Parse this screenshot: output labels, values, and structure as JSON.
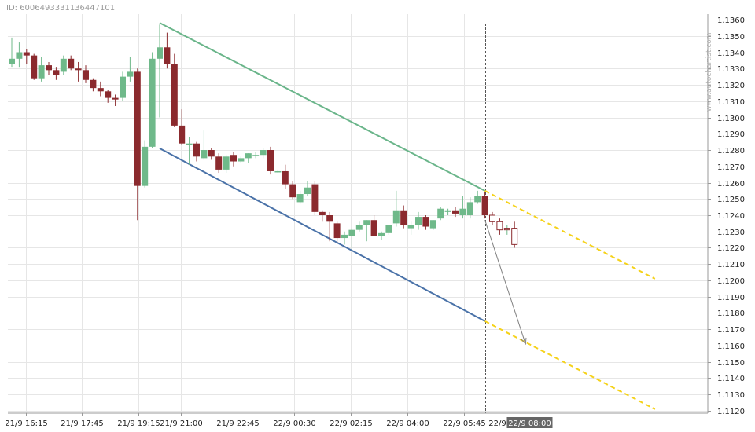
{
  "header": {
    "id_label": "ID: 6006493331136447101"
  },
  "watermark": "www.autochartist.com",
  "chart_data": {
    "type": "candlestick",
    "x_ticks": [
      "21/9 16:15",
      "21/9 17:45",
      "21/9 19:15",
      "21/9 21:00",
      "21/9 22:45",
      "22/9 00:30",
      "22/9 02:15",
      "22/9 04:00",
      "22/9 05:45",
      "22/9 07:30",
      "22/9 08:00"
    ],
    "highlighted_x_tick": "22/9 08:00",
    "y_ticks": [
      "1.1120",
      "1.1130",
      "1.1140",
      "1.1150",
      "1.1160",
      "1.1170",
      "1.1180",
      "1.1190",
      "1.1200",
      "1.1210",
      "1.1220",
      "1.1230",
      "1.1240",
      "1.1250",
      "1.1260",
      "1.1270",
      "1.1280",
      "1.1290",
      "1.1300",
      "1.1310",
      "1.1320",
      "1.1330",
      "1.1340",
      "1.1350",
      "1.1360"
    ],
    "ylim": [
      1.11175,
      1.13615
    ],
    "grid": true,
    "colors": {
      "up": "#6fb98a",
      "down": "#8b2a2e",
      "support": "#4a72a8",
      "resistance": "#6ab58a",
      "projection": "#f5d21a",
      "arrow": "#808080",
      "highlight_bg": "#666666"
    },
    "candles": [
      {
        "o": 1.1333,
        "h": 1.1349,
        "l": 1.1331,
        "c": 1.1336
      },
      {
        "o": 1.1336,
        "h": 1.1346,
        "l": 1.1331,
        "c": 1.134
      },
      {
        "o": 1.134,
        "h": 1.1342,
        "l": 1.1333,
        "c": 1.1338
      },
      {
        "o": 1.1338,
        "h": 1.1339,
        "l": 1.1323,
        "c": 1.1324
      },
      {
        "o": 1.1324,
        "h": 1.1337,
        "l": 1.1322,
        "c": 1.1332
      },
      {
        "o": 1.1332,
        "h": 1.1334,
        "l": 1.1326,
        "c": 1.1329
      },
      {
        "o": 1.1329,
        "h": 1.1331,
        "l": 1.1323,
        "c": 1.1326
      },
      {
        "o": 1.1328,
        "h": 1.1338,
        "l": 1.1326,
        "c": 1.1336
      },
      {
        "o": 1.1336,
        "h": 1.1338,
        "l": 1.1329,
        "c": 1.133
      },
      {
        "o": 1.133,
        "h": 1.1334,
        "l": 1.1322,
        "c": 1.1329
      },
      {
        "o": 1.1329,
        "h": 1.1332,
        "l": 1.1321,
        "c": 1.1323
      },
      {
        "o": 1.1323,
        "h": 1.1324,
        "l": 1.1316,
        "c": 1.1318
      },
      {
        "o": 1.1318,
        "h": 1.1322,
        "l": 1.1313,
        "c": 1.1316
      },
      {
        "o": 1.1316,
        "h": 1.1317,
        "l": 1.1309,
        "c": 1.1312
      },
      {
        "o": 1.1312,
        "h": 1.1314,
        "l": 1.1307,
        "c": 1.1311
      },
      {
        "o": 1.1312,
        "h": 1.1328,
        "l": 1.131,
        "c": 1.1325
      },
      {
        "o": 1.1325,
        "h": 1.1337,
        "l": 1.1322,
        "c": 1.1328
      },
      {
        "o": 1.1328,
        "h": 1.133,
        "l": 1.1237,
        "c": 1.1258
      },
      {
        "o": 1.1258,
        "h": 1.1286,
        "l": 1.1257,
        "c": 1.1282
      },
      {
        "o": 1.1282,
        "h": 1.134,
        "l": 1.1281,
        "c": 1.1336
      },
      {
        "o": 1.1336,
        "h": 1.1357,
        "l": 1.13,
        "c": 1.1343
      },
      {
        "o": 1.1343,
        "h": 1.1352,
        "l": 1.133,
        "c": 1.1333
      },
      {
        "o": 1.1333,
        "h": 1.1339,
        "l": 1.1294,
        "c": 1.1295
      },
      {
        "o": 1.1295,
        "h": 1.1305,
        "l": 1.1283,
        "c": 1.1284
      },
      {
        "o": 1.1284,
        "h": 1.1288,
        "l": 1.1271,
        "c": 1.1284
      },
      {
        "o": 1.1284,
        "h": 1.1285,
        "l": 1.1273,
        "c": 1.1276
      },
      {
        "o": 1.1275,
        "h": 1.1292,
        "l": 1.1274,
        "c": 1.128
      },
      {
        "o": 1.128,
        "h": 1.1281,
        "l": 1.1274,
        "c": 1.1276
      },
      {
        "o": 1.1276,
        "h": 1.1278,
        "l": 1.1266,
        "c": 1.1268
      },
      {
        "o": 1.1268,
        "h": 1.1277,
        "l": 1.1266,
        "c": 1.1276
      },
      {
        "o": 1.1277,
        "h": 1.1279,
        "l": 1.127,
        "c": 1.1273
      },
      {
        "o": 1.1273,
        "h": 1.1276,
        "l": 1.1272,
        "c": 1.1275
      },
      {
        "o": 1.1275,
        "h": 1.1278,
        "l": 1.1272,
        "c": 1.1278
      },
      {
        "o": 1.1277,
        "h": 1.1279,
        "l": 1.1275,
        "c": 1.1277
      },
      {
        "o": 1.1277,
        "h": 1.1281,
        "l": 1.1275,
        "c": 1.128
      },
      {
        "o": 1.128,
        "h": 1.1282,
        "l": 1.1265,
        "c": 1.1267
      },
      {
        "o": 1.1267,
        "h": 1.1268,
        "l": 1.1266,
        "c": 1.1267
      },
      {
        "o": 1.1267,
        "h": 1.1271,
        "l": 1.1256,
        "c": 1.1259
      },
      {
        "o": 1.1259,
        "h": 1.1261,
        "l": 1.125,
        "c": 1.1251
      },
      {
        "o": 1.1248,
        "h": 1.1255,
        "l": 1.1247,
        "c": 1.1253
      },
      {
        "o": 1.1253,
        "h": 1.1261,
        "l": 1.1252,
        "c": 1.1257
      },
      {
        "o": 1.1259,
        "h": 1.1261,
        "l": 1.124,
        "c": 1.1242
      },
      {
        "o": 1.1242,
        "h": 1.1243,
        "l": 1.1236,
        "c": 1.124
      },
      {
        "o": 1.124,
        "h": 1.1242,
        "l": 1.1224,
        "c": 1.1236
      },
      {
        "o": 1.1235,
        "h": 1.1236,
        "l": 1.1223,
        "c": 1.1226
      },
      {
        "o": 1.1226,
        "h": 1.123,
        "l": 1.1222,
        "c": 1.1228
      },
      {
        "o": 1.1227,
        "h": 1.1232,
        "l": 1.1219,
        "c": 1.1231
      },
      {
        "o": 1.1231,
        "h": 1.1236,
        "l": 1.123,
        "c": 1.1234
      },
      {
        "o": 1.1234,
        "h": 1.1237,
        "l": 1.1224,
        "c": 1.1237
      },
      {
        "o": 1.1237,
        "h": 1.124,
        "l": 1.1227,
        "c": 1.1227
      },
      {
        "o": 1.1227,
        "h": 1.123,
        "l": 1.1225,
        "c": 1.1229
      },
      {
        "o": 1.1229,
        "h": 1.1234,
        "l": 1.1228,
        "c": 1.1234
      },
      {
        "o": 1.1235,
        "h": 1.1255,
        "l": 1.1233,
        "c": 1.1243
      },
      {
        "o": 1.1243,
        "h": 1.1246,
        "l": 1.1232,
        "c": 1.1234
      },
      {
        "o": 1.1232,
        "h": 1.1236,
        "l": 1.1228,
        "c": 1.1234
      },
      {
        "o": 1.1234,
        "h": 1.1242,
        "l": 1.1231,
        "c": 1.1239
      },
      {
        "o": 1.1239,
        "h": 1.124,
        "l": 1.1231,
        "c": 1.1233
      },
      {
        "o": 1.1232,
        "h": 1.1237,
        "l": 1.1231,
        "c": 1.1237
      },
      {
        "o": 1.1238,
        "h": 1.1245,
        "l": 1.1237,
        "c": 1.1244
      },
      {
        "o": 1.1242,
        "h": 1.1244,
        "l": 1.124,
        "c": 1.1243
      },
      {
        "o": 1.1243,
        "h": 1.1245,
        "l": 1.1239,
        "c": 1.1241
      },
      {
        "o": 1.124,
        "h": 1.1252,
        "l": 1.1238,
        "c": 1.1244
      },
      {
        "o": 1.124,
        "h": 1.1251,
        "l": 1.1238,
        "c": 1.1248
      },
      {
        "o": 1.1248,
        "h": 1.1255,
        "l": 1.1247,
        "c": 1.1252
      },
      {
        "o": 1.1252,
        "h": 1.1254,
        "l": 1.1238,
        "c": 1.124
      },
      {
        "o": 1.124,
        "h": 1.1242,
        "l": 1.1234,
        "c": 1.1236,
        "outline": true
      },
      {
        "o": 1.1236,
        "h": 1.1238,
        "l": 1.1228,
        "c": 1.1231,
        "outline": true
      },
      {
        "o": 1.1231,
        "h": 1.1234,
        "l": 1.1228,
        "c": 1.1232,
        "outline": true
      },
      {
        "o": 1.1232,
        "h": 1.1236,
        "l": 1.122,
        "c": 1.1222,
        "outline": true
      }
    ],
    "resistance_line": {
      "from": {
        "i": 20.0,
        "y": 1.1358
      },
      "to": {
        "i": 64.0,
        "y": 1.1255
      }
    },
    "support_line": {
      "from": {
        "i": 20.0,
        "y": 1.1281
      },
      "to": {
        "i": 64.0,
        "y": 1.1175
      }
    },
    "resistance_projection": {
      "from": {
        "i": 64.0,
        "y": 1.1255
      },
      "to": {
        "i": 87.0,
        "y": 1.1201
      }
    },
    "support_projection": {
      "from": {
        "i": 64.0,
        "y": 1.1175
      },
      "to": {
        "i": 87.0,
        "y": 1.1121
      }
    },
    "forecast_arrow": {
      "from": {
        "i": 64.0,
        "y": 1.1237
      },
      "to": {
        "i": 69.5,
        "y": 1.1161
      }
    },
    "current_marker_index": 64.0
  }
}
